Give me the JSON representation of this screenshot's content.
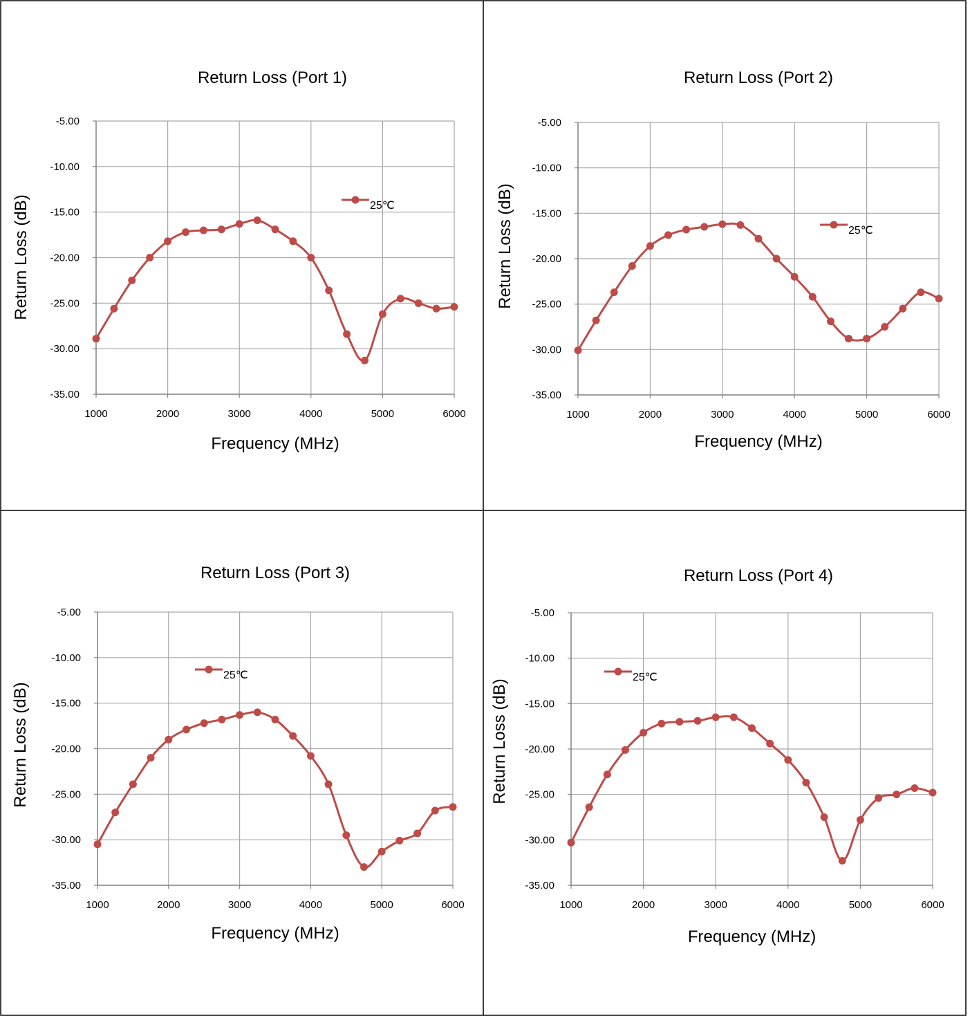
{
  "colors": {
    "series": "#BE4B48",
    "grid": "#A6A6A6",
    "axis": "#868686",
    "border": "#000000"
  },
  "chart_data": [
    {
      "type": "line",
      "title": "Return Loss (Port 1)",
      "xlabel": "Frequency (MHz)",
      "ylabel": "Return Loss (dB)",
      "xlim": [
        1000,
        6000
      ],
      "ylim": [
        -35,
        -5
      ],
      "xticks": [
        "1000",
        "2000",
        "3000",
        "4000",
        "5000",
        "6000"
      ],
      "yticks": [
        "-5.00",
        "-10.00",
        "-15.00",
        "-20.00",
        "-25.00",
        "-30.00",
        "-35.00"
      ],
      "grid": true,
      "legend_position": "top-right",
      "x": [
        1000,
        1250,
        1500,
        1750,
        2000,
        2250,
        2500,
        2750,
        3000,
        3250,
        3500,
        3750,
        4000,
        4250,
        4500,
        4750,
        5000,
        5250,
        5500,
        5750,
        6000
      ],
      "series": [
        {
          "name": "25℃",
          "values": [
            -28.9,
            -25.6,
            -22.5,
            -20.0,
            -18.2,
            -17.2,
            -17.0,
            -16.9,
            -16.3,
            -15.9,
            -16.9,
            -18.2,
            -20.0,
            -23.6,
            -28.4,
            -31.3,
            -26.2,
            -24.5,
            -25.0,
            -25.6,
            -25.4
          ]
        }
      ]
    },
    {
      "type": "line",
      "title": "Return Loss (Port 2)",
      "xlabel": "Frequency (MHz)",
      "ylabel": "Return Loss (dB)",
      "xlim": [
        1000,
        6000
      ],
      "ylim": [
        -35,
        -5
      ],
      "xticks": [
        "1000",
        "2000",
        "3000",
        "4000",
        "5000",
        "6000"
      ],
      "yticks": [
        "-5.00",
        "-10.00",
        "-15.00",
        "-20.00",
        "-25.00",
        "-30.00",
        "-35.00"
      ],
      "grid": true,
      "legend_position": "top-right",
      "x": [
        1000,
        1250,
        1500,
        1750,
        2000,
        2250,
        2500,
        2750,
        3000,
        3250,
        3500,
        3750,
        4000,
        4250,
        4500,
        4750,
        5000,
        5250,
        5500,
        5750,
        6000
      ],
      "series": [
        {
          "name": "25℃",
          "values": [
            -30.1,
            -26.8,
            -23.7,
            -20.8,
            -18.6,
            -17.4,
            -16.8,
            -16.5,
            -16.2,
            -16.3,
            -17.8,
            -20.0,
            -22.0,
            -24.2,
            -26.9,
            -28.8,
            -28.8,
            -27.5,
            -25.5,
            -23.7,
            -24.4
          ]
        }
      ]
    },
    {
      "type": "line",
      "title": "Return Loss (Port 3)",
      "xlabel": "Frequency (MHz)",
      "ylabel": "Return Loss (dB)",
      "xlim": [
        1000,
        6000
      ],
      "ylim": [
        -35,
        -5
      ],
      "xticks": [
        "1000",
        "2000",
        "3000",
        "4000",
        "5000",
        "6000"
      ],
      "yticks": [
        "-5.00",
        "-10.00",
        "-15.00",
        "-20.00",
        "-25.00",
        "-30.00",
        "-35.00"
      ],
      "grid": true,
      "legend_position": "top-left",
      "x": [
        1000,
        1250,
        1500,
        1750,
        2000,
        2250,
        2500,
        2750,
        3000,
        3250,
        3500,
        3750,
        4000,
        4250,
        4500,
        4750,
        5000,
        5250,
        5500,
        5750,
        6000
      ],
      "series": [
        {
          "name": "25℃",
          "values": [
            -30.5,
            -27.0,
            -23.9,
            -21.0,
            -19.0,
            -17.9,
            -17.2,
            -16.8,
            -16.3,
            -16.0,
            -16.8,
            -18.6,
            -20.8,
            -23.9,
            -29.5,
            -33.0,
            -31.3,
            -30.1,
            -29.3,
            -26.8,
            -26.4
          ]
        }
      ]
    },
    {
      "type": "line",
      "title": "Return Loss (Port 4)",
      "xlabel": "Frequency (MHz)",
      "ylabel": "Return Loss (dB)",
      "xlim": [
        1000,
        6000
      ],
      "ylim": [
        -35,
        -5
      ],
      "xticks": [
        "1000",
        "2000",
        "3000",
        "4000",
        "5000",
        "6000"
      ],
      "yticks": [
        "-5.00",
        "-10.00",
        "-15.00",
        "-20.00",
        "-25.00",
        "-30.00",
        "-35.00"
      ],
      "grid": true,
      "legend_position": "top-left",
      "x": [
        1000,
        1250,
        1500,
        1750,
        2000,
        2250,
        2500,
        2750,
        3000,
        3250,
        3500,
        3750,
        4000,
        4250,
        4500,
        4750,
        5000,
        5250,
        5500,
        5750,
        6000
      ],
      "series": [
        {
          "name": "25℃",
          "values": [
            -30.3,
            -26.4,
            -22.8,
            -20.1,
            -18.2,
            -17.2,
            -17.0,
            -16.9,
            -16.5,
            -16.5,
            -17.7,
            -19.4,
            -21.2,
            -23.7,
            -27.5,
            -32.3,
            -27.8,
            -25.4,
            -25.0,
            -24.3,
            -24.8
          ]
        }
      ]
    }
  ]
}
